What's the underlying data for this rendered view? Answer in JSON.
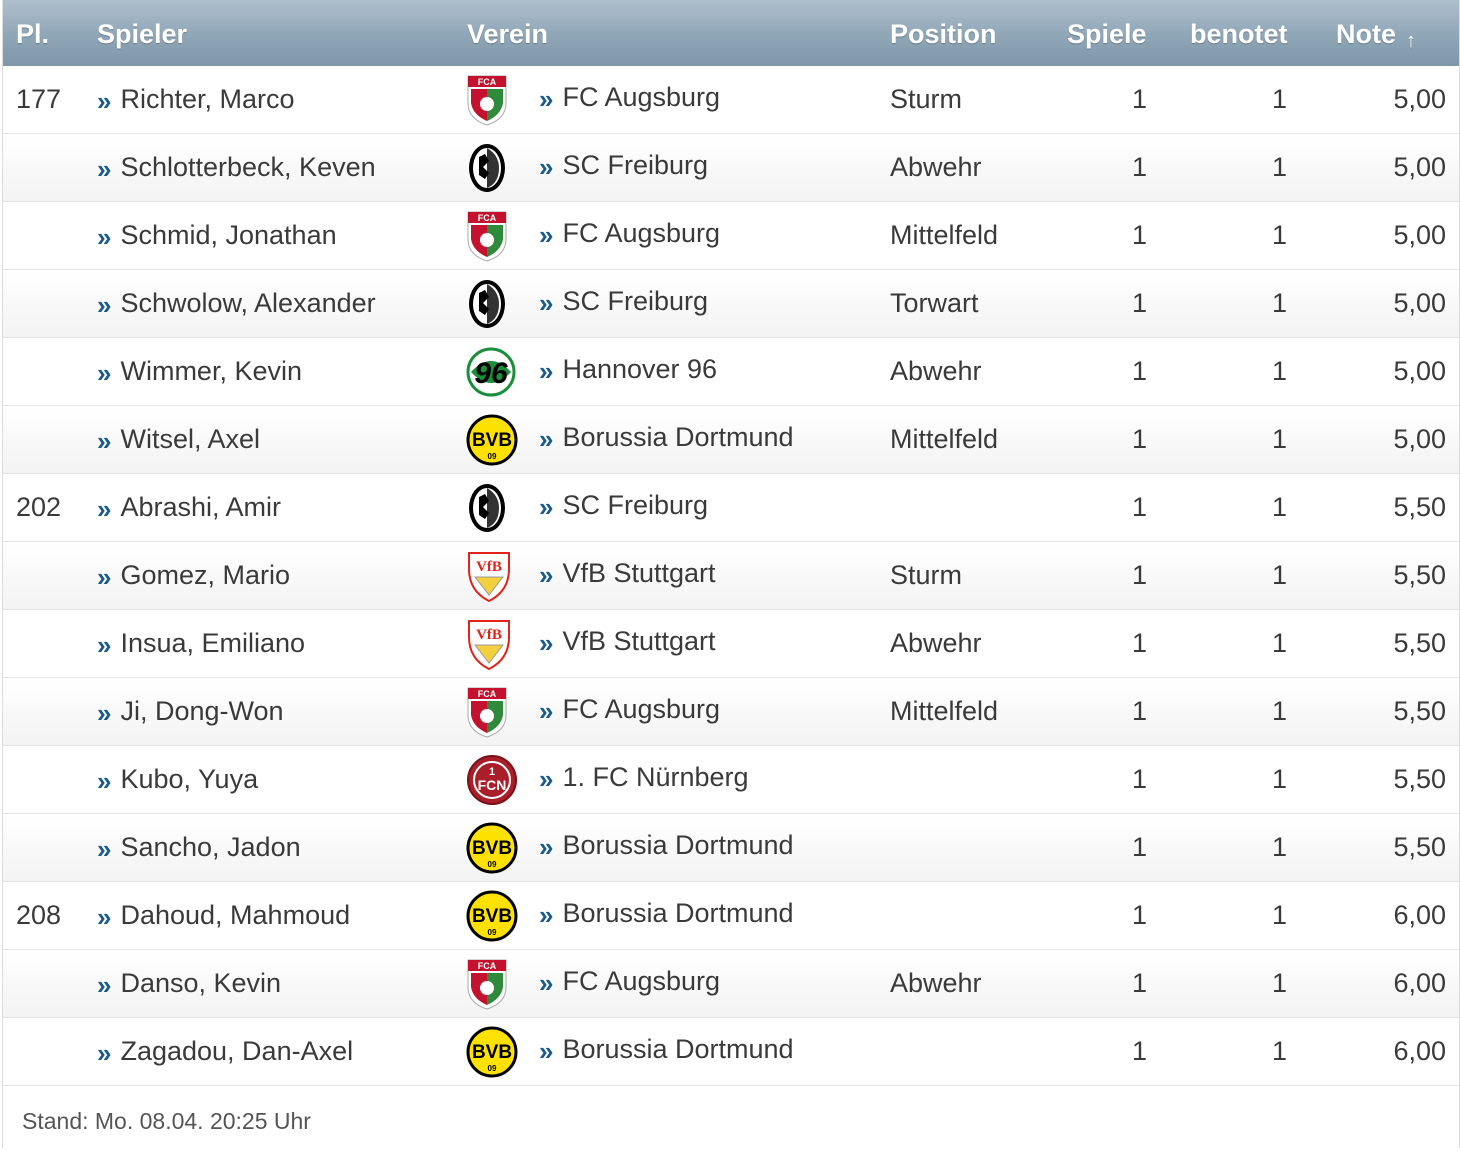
{
  "columns": {
    "rank": "Pl.",
    "player": "Spieler",
    "club": "Verein",
    "position": "Position",
    "games": "Spiele",
    "rated": "benotet",
    "grade": "Note",
    "sort_icon": "sort-asc-arrow-icon"
  },
  "crests": {
    "augsburg": {
      "icon": "fc-augsburg-crest-icon",
      "text": "FCA",
      "colors": [
        "#c4122e",
        "#2f8a3b",
        "#ffffff"
      ]
    },
    "freiburg": {
      "icon": "sc-freiburg-crest-icon",
      "text": "",
      "colors": [
        "#000000",
        "#ffffff",
        "#e30613"
      ]
    },
    "hannover": {
      "icon": "hannover-96-crest-icon",
      "text": "96",
      "colors": [
        "#000000",
        "#1a8f3b",
        "#ffffff"
      ]
    },
    "dortmund": {
      "icon": "bvb-crest-icon",
      "text": "BVB 09",
      "colors": [
        "#fde100",
        "#000000"
      ]
    },
    "stuttgart": {
      "icon": "vfb-stuttgart-crest-icon",
      "text": "VfB",
      "colors": [
        "#e32219",
        "#f4d03f",
        "#ffffff"
      ]
    },
    "nuernberg": {
      "icon": "fc-nuernberg-crest-icon",
      "text": "1 FCN",
      "colors": [
        "#a91e28",
        "#ffffff"
      ]
    }
  },
  "rows": [
    {
      "rank": "177",
      "player": "Richter, Marco",
      "crest": "augsburg",
      "club": "FC Augsburg",
      "position": "Sturm",
      "games": "1",
      "rated": "1",
      "grade": "5,00"
    },
    {
      "rank": "",
      "player": "Schlotterbeck, Keven",
      "crest": "freiburg",
      "club": "SC Freiburg",
      "position": "Abwehr",
      "games": "1",
      "rated": "1",
      "grade": "5,00"
    },
    {
      "rank": "",
      "player": "Schmid, Jonathan",
      "crest": "augsburg",
      "club": "FC Augsburg",
      "position": "Mittelfeld",
      "games": "1",
      "rated": "1",
      "grade": "5,00"
    },
    {
      "rank": "",
      "player": "Schwolow, Alexander",
      "crest": "freiburg",
      "club": "SC Freiburg",
      "position": "Torwart",
      "games": "1",
      "rated": "1",
      "grade": "5,00"
    },
    {
      "rank": "",
      "player": "Wimmer, Kevin",
      "crest": "hannover",
      "club": "Hannover 96",
      "position": "Abwehr",
      "games": "1",
      "rated": "1",
      "grade": "5,00"
    },
    {
      "rank": "",
      "player": "Witsel, Axel",
      "crest": "dortmund",
      "club": "Borussia Dortmund",
      "position": "Mittelfeld",
      "games": "1",
      "rated": "1",
      "grade": "5,00"
    },
    {
      "rank": "202",
      "player": "Abrashi, Amir",
      "crest": "freiburg",
      "club": "SC Freiburg",
      "position": "",
      "games": "1",
      "rated": "1",
      "grade": "5,50"
    },
    {
      "rank": "",
      "player": "Gomez, Mario",
      "crest": "stuttgart",
      "club": "VfB Stuttgart",
      "position": "Sturm",
      "games": "1",
      "rated": "1",
      "grade": "5,50"
    },
    {
      "rank": "",
      "player": "Insua, Emiliano",
      "crest": "stuttgart",
      "club": "VfB Stuttgart",
      "position": "Abwehr",
      "games": "1",
      "rated": "1",
      "grade": "5,50"
    },
    {
      "rank": "",
      "player": "Ji, Dong-Won",
      "crest": "augsburg",
      "club": "FC Augsburg",
      "position": "Mittelfeld",
      "games": "1",
      "rated": "1",
      "grade": "5,50"
    },
    {
      "rank": "",
      "player": "Kubo, Yuya",
      "crest": "nuernberg",
      "club": "1. FC Nürnberg",
      "position": "",
      "games": "1",
      "rated": "1",
      "grade": "5,50"
    },
    {
      "rank": "",
      "player": "Sancho, Jadon",
      "crest": "dortmund",
      "club": "Borussia Dortmund",
      "position": "",
      "games": "1",
      "rated": "1",
      "grade": "5,50"
    },
    {
      "rank": "208",
      "player": "Dahoud, Mahmoud",
      "crest": "dortmund",
      "club": "Borussia Dortmund",
      "position": "",
      "games": "1",
      "rated": "1",
      "grade": "6,00"
    },
    {
      "rank": "",
      "player": "Danso, Kevin",
      "crest": "augsburg",
      "club": "FC Augsburg",
      "position": "Abwehr",
      "games": "1",
      "rated": "1",
      "grade": "6,00"
    },
    {
      "rank": "",
      "player": "Zagadou, Dan-Axel",
      "crest": "dortmund",
      "club": "Borussia Dortmund",
      "position": "",
      "games": "1",
      "rated": "1",
      "grade": "6,00"
    }
  ],
  "link_marker": "»",
  "footer": {
    "stand": "Stand: Mo. 08.04. 20:25 Uhr"
  }
}
